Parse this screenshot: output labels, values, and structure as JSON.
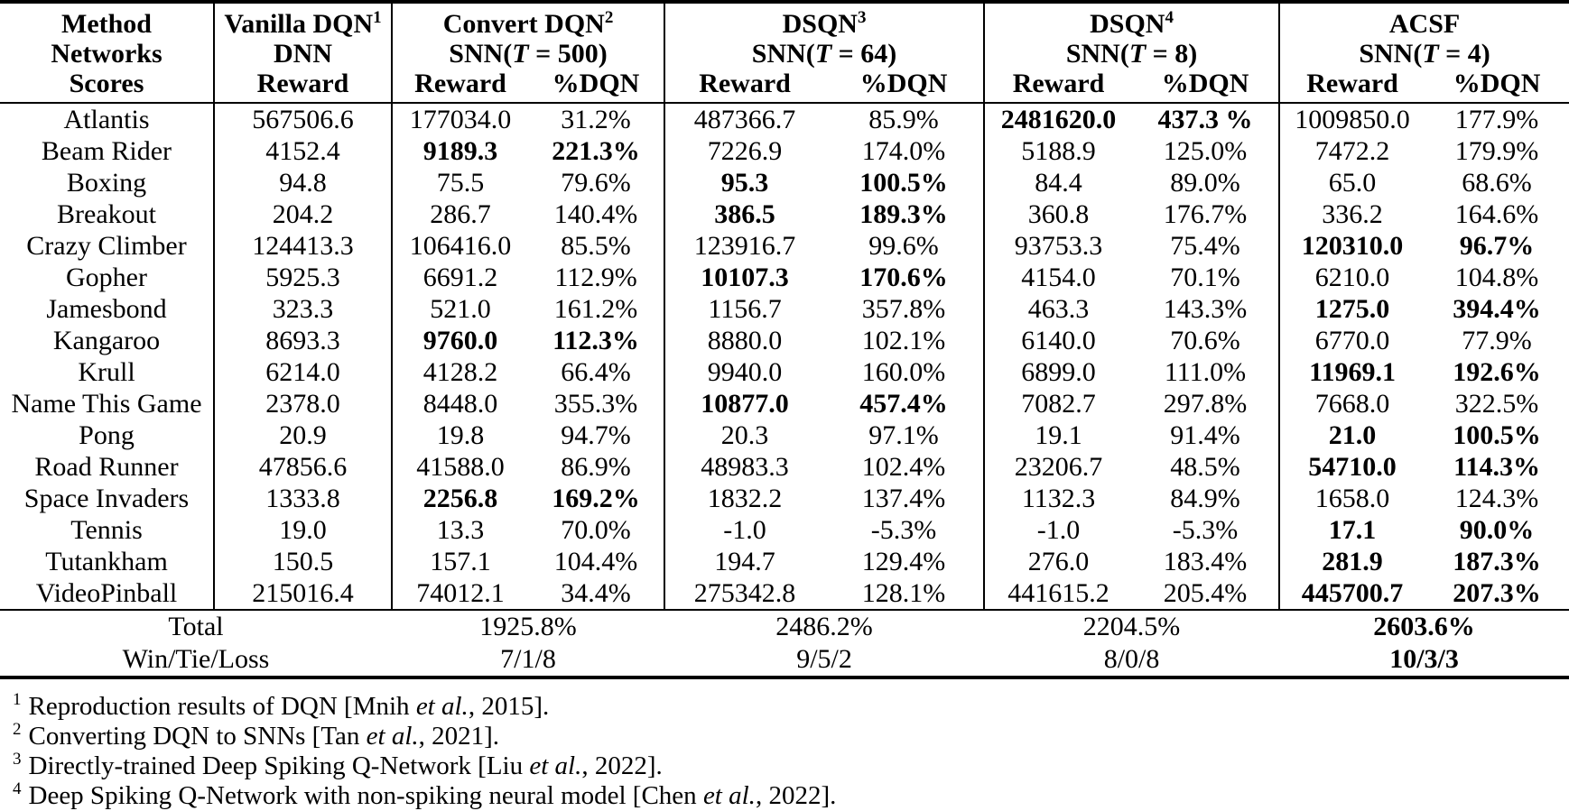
{
  "table": {
    "corner": [
      "Method",
      "Networks",
      "Scores"
    ],
    "groups": [
      {
        "title": "Vanilla DQN",
        "sup": "1",
        "network": "DNN",
        "cols": [
          "Reward"
        ]
      },
      {
        "title": "Convert DQN",
        "sup": "2",
        "network": "SNN(T = 500)",
        "cols": [
          "Reward",
          "%DQN"
        ]
      },
      {
        "title": "DSQN",
        "sup": "3",
        "network": "SNN(T = 64)",
        "cols": [
          "Reward",
          "%DQN"
        ]
      },
      {
        "title": "DSQN",
        "sup": "4",
        "network": "SNN(T = 8)",
        "cols": [
          "Reward",
          "%DQN"
        ]
      },
      {
        "title": "ACSF",
        "sup": "",
        "network": "SNN(T = 4)",
        "cols": [
          "Reward",
          "%DQN"
        ]
      }
    ],
    "rows": [
      {
        "game": "Atlantis",
        "values": [
          "567506.6",
          "177034.0",
          "31.2%",
          "487366.7",
          "85.9%",
          "2481620.0",
          "437.3 %",
          "1009850.0",
          "177.9%"
        ],
        "bold": [
          5,
          6
        ]
      },
      {
        "game": "Beam Rider",
        "values": [
          "4152.4",
          "9189.3",
          "221.3%",
          "7226.9",
          "174.0%",
          "5188.9",
          "125.0%",
          "7472.2",
          "179.9%"
        ],
        "bold": [
          1,
          2
        ]
      },
      {
        "game": "Boxing",
        "values": [
          "94.8",
          "75.5",
          "79.6%",
          "95.3",
          "100.5%",
          "84.4",
          "89.0%",
          "65.0",
          "68.6%"
        ],
        "bold": [
          3,
          4
        ]
      },
      {
        "game": "Breakout",
        "values": [
          "204.2",
          "286.7",
          "140.4%",
          "386.5",
          "189.3%",
          "360.8",
          "176.7%",
          "336.2",
          "164.6%"
        ],
        "bold": [
          3,
          4
        ]
      },
      {
        "game": "Crazy Climber",
        "values": [
          "124413.3",
          "106416.0",
          "85.5%",
          "123916.7",
          "99.6%",
          "93753.3",
          "75.4%",
          "120310.0",
          "96.7%"
        ],
        "bold": [
          7,
          8
        ]
      },
      {
        "game": "Gopher",
        "values": [
          "5925.3",
          "6691.2",
          "112.9%",
          "10107.3",
          "170.6%",
          "4154.0",
          "70.1%",
          "6210.0",
          "104.8%"
        ],
        "bold": [
          3,
          4
        ]
      },
      {
        "game": "Jamesbond",
        "values": [
          "323.3",
          "521.0",
          "161.2%",
          "1156.7",
          "357.8%",
          "463.3",
          "143.3%",
          "1275.0",
          "394.4%"
        ],
        "bold": [
          7,
          8
        ]
      },
      {
        "game": "Kangaroo",
        "values": [
          "8693.3",
          "9760.0",
          "112.3%",
          "8880.0",
          "102.1%",
          "6140.0",
          "70.6%",
          "6770.0",
          "77.9%"
        ],
        "bold": [
          1,
          2
        ]
      },
      {
        "game": "Krull",
        "values": [
          "6214.0",
          "4128.2",
          "66.4%",
          "9940.0",
          "160.0%",
          "6899.0",
          "111.0%",
          "11969.1",
          "192.6%"
        ],
        "bold": [
          7,
          8
        ]
      },
      {
        "game": "Name This Game",
        "values": [
          "2378.0",
          "8448.0",
          "355.3%",
          "10877.0",
          "457.4%",
          "7082.7",
          "297.8%",
          "7668.0",
          "322.5%"
        ],
        "bold": [
          3,
          4
        ]
      },
      {
        "game": "Pong",
        "values": [
          "20.9",
          "19.8",
          "94.7%",
          "20.3",
          "97.1%",
          "19.1",
          "91.4%",
          "21.0",
          "100.5%"
        ],
        "bold": [
          7,
          8
        ]
      },
      {
        "game": "Road Runner",
        "values": [
          "47856.6",
          "41588.0",
          "86.9%",
          "48983.3",
          "102.4%",
          "23206.7",
          "48.5%",
          "54710.0",
          "114.3%"
        ],
        "bold": [
          7,
          8
        ]
      },
      {
        "game": "Space Invaders",
        "values": [
          "1333.8",
          "2256.8",
          "169.2%",
          "1832.2",
          "137.4%",
          "1132.3",
          "84.9%",
          "1658.0",
          "124.3%"
        ],
        "bold": [
          1,
          2
        ]
      },
      {
        "game": "Tennis",
        "values": [
          "19.0",
          "13.3",
          "70.0%",
          "-1.0",
          "-5.3%",
          "-1.0",
          "-5.3%",
          "17.1",
          "90.0%"
        ],
        "bold": [
          7,
          8
        ]
      },
      {
        "game": "Tutankham",
        "values": [
          "150.5",
          "157.1",
          "104.4%",
          "194.7",
          "129.4%",
          "276.0",
          "183.4%",
          "281.9",
          "187.3%"
        ],
        "bold": [
          7,
          8
        ]
      },
      {
        "game": "VideoPinball",
        "values": [
          "215016.4",
          "74012.1",
          "34.4%",
          "275342.8",
          "128.1%",
          "441615.2",
          "205.4%",
          "445700.7",
          "207.3%"
        ],
        "bold": [
          7,
          8
        ]
      }
    ],
    "total": {
      "label": "Total",
      "values": [
        "1925.8%",
        "2486.2%",
        "2204.5%",
        "2603.6%"
      ],
      "bold": [
        3
      ]
    },
    "win_tie_loss": {
      "label": "Win/Tie/Loss",
      "values": [
        "7/1/8",
        "9/5/2",
        "8/0/8",
        "10/3/3"
      ],
      "bold": [
        3
      ]
    }
  },
  "footnotes": [
    {
      "sup": "1",
      "text": "Reproduction results of DQN [Mnih et al., 2015]."
    },
    {
      "sup": "2",
      "text": "Converting DQN to SNNs [Tan et al., 2021]."
    },
    {
      "sup": "3",
      "text": "Directly-trained Deep Spiking Q-Network [Liu et al., 2022]."
    },
    {
      "sup": "4",
      "text": "Deep Spiking Q-Network with non-spiking neural model [Chen et al., 2022]."
    }
  ]
}
